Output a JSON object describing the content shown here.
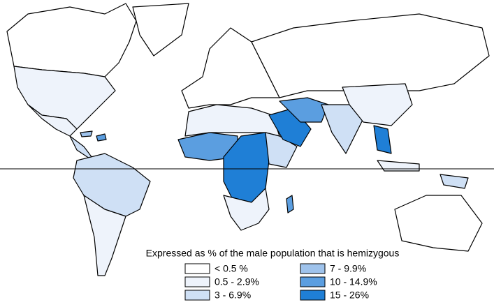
{
  "legend": {
    "title": "Expressed as % of the male population that is hemizygous",
    "items": [
      {
        "label": "< 0.5 %",
        "color": "#ffffff"
      },
      {
        "label": "0.5 - 2.9%",
        "color": "#eef3fb"
      },
      {
        "label": "3 - 6.9%",
        "color": "#cfe0f5"
      },
      {
        "label": "7 - 9.9%",
        "color": "#9fc3ec"
      },
      {
        "label": "10 - 14.9%",
        "color": "#5b9ee0"
      },
      {
        "label": "15 - 26%",
        "color": "#1f7fd6"
      }
    ]
  }
}
